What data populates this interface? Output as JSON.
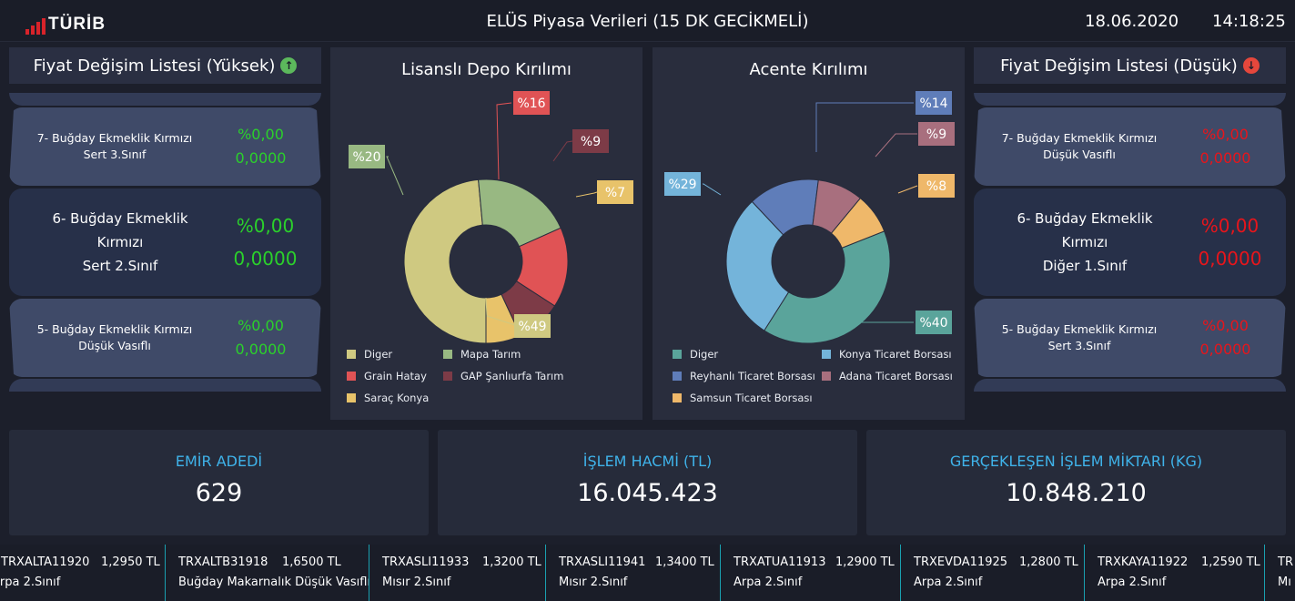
{
  "header": {
    "logo_text": "TÜRİB",
    "title": "ELÜS Piyasa Verileri (15 DK GECİKMELİ)",
    "date": "18.06.2020",
    "time": "14:18:25"
  },
  "colors": {
    "logo_red": "#d8232a",
    "positive": "#2bd12b",
    "negative": "#e8151b",
    "stat_label": "#3fb3ea"
  },
  "left_panel": {
    "title": "Fiyat Değişim Listesi (Yüksek)",
    "icon": "arrow-up-circle-icon",
    "items": [
      {
        "name_line1": "7- Buğday Ekmeklik Kırmızı",
        "name_line2": "Sert 3.Sınıf",
        "percent": "%0,00",
        "value": "0,0000"
      },
      {
        "name_line1": "6- Buğday Ekmeklik Kırmızı",
        "name_line2": "Sert 2.Sınıf",
        "percent": "%0,00",
        "value": "0,0000"
      },
      {
        "name_line1": "5- Buğday Ekmeklik Kırmızı",
        "name_line2": "Düşük Vasıflı",
        "percent": "%0,00",
        "value": "0,0000"
      }
    ]
  },
  "right_panel": {
    "title": "Fiyat Değişim Listesi (Düşük)",
    "icon": "arrow-down-circle-icon",
    "items": [
      {
        "name_line1": "7- Buğday Ekmeklik Kırmızı",
        "name_line2": "Düşük Vasıflı",
        "percent": "%0,00",
        "value": "0,0000"
      },
      {
        "name_line1": "6- Buğday Ekmeklik Kırmızı",
        "name_line2": "Diğer 1.Sınıf",
        "percent": "%0,00",
        "value": "0,0000"
      },
      {
        "name_line1": "5- Buğday Ekmeklik Kırmızı",
        "name_line2": "Sert 3.Sınıf",
        "percent": "%0,00",
        "value": "0,0000"
      }
    ]
  },
  "chart_data": [
    {
      "type": "pie",
      "title": "Lisanslı Depo Kırılımı",
      "legend_position": "bottom",
      "series": [
        {
          "name": "Diger",
          "value": 49,
          "label": "%49",
          "color": "#cfc981"
        },
        {
          "name": "Mapa Tarım",
          "value": 20,
          "label": "%20",
          "color": "#98b882"
        },
        {
          "name": "Grain Hatay",
          "value": 16,
          "label": "%16",
          "color": "#e05355"
        },
        {
          "name": "GAP Şanlıurfa Tarım",
          "value": 9,
          "label": "%9",
          "color": "#7d3b47"
        },
        {
          "name": "Saraç Konya",
          "value": 7,
          "label": "%7",
          "color": "#e8c36a"
        }
      ]
    },
    {
      "type": "pie",
      "title": "Acente Kırılımı",
      "legend_position": "bottom",
      "series": [
        {
          "name": "Diger",
          "value": 40,
          "label": "%40",
          "color": "#5aa49b"
        },
        {
          "name": "Konya Ticaret Borsası",
          "value": 29,
          "label": "%29",
          "color": "#74b4da"
        },
        {
          "name": "Reyhanlı Ticaret Borsası",
          "value": 14,
          "label": "%14",
          "color": "#5f7db9"
        },
        {
          "name": "Adana Ticaret Borsası",
          "value": 9,
          "label": "%9",
          "color": "#a86f7e"
        },
        {
          "name": "Samsun Ticaret Borsası",
          "value": 8,
          "label": "%8",
          "color": "#efb86a"
        }
      ]
    }
  ],
  "stats": [
    {
      "label": "EMİR ADEDİ",
      "value": "629"
    },
    {
      "label": "İŞLEM HACMİ (TL)",
      "value": "16.045.423"
    },
    {
      "label": "GERÇEKLEŞEN İŞLEM MİKTARI (KG)",
      "value": "10.848.210"
    }
  ],
  "ticker": [
    {
      "code": "TRXALTA11920",
      "price": "1,2950 TL",
      "desc": "Arpa 2.Sınıf"
    },
    {
      "code": "TRXALTB31918",
      "price": "1,6500 TL",
      "desc": "Buğday Makarnalık Düşük Vasıflı"
    },
    {
      "code": "TRXASLI11933",
      "price": "1,3200 TL",
      "desc": "Mısır 2.Sınıf"
    },
    {
      "code": "TRXASLI11941",
      "price": "1,3400 TL",
      "desc": "Mısır 2.Sınıf"
    },
    {
      "code": "TRXATUA11913",
      "price": "1,2900 TL",
      "desc": "Arpa 2.Sınıf"
    },
    {
      "code": "TRXEVDA11925",
      "price": "1,2800 TL",
      "desc": "Arpa 2.Sınıf"
    },
    {
      "code": "TRXKAYA11922",
      "price": "1,2590 TL",
      "desc": "Arpa 2.Sınıf"
    },
    {
      "code": "TR",
      "price": "",
      "desc": "Mı"
    }
  ]
}
